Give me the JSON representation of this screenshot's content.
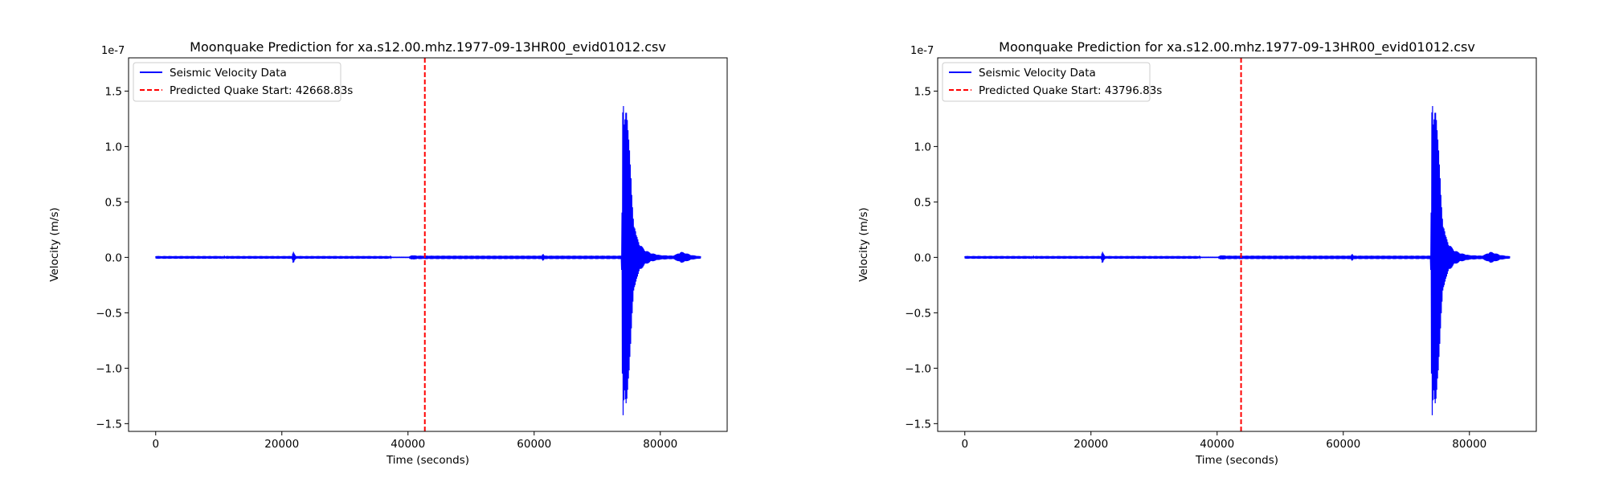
{
  "chart_data": [
    {
      "type": "line",
      "title": "Moonquake Prediction for xa.s12.00.mhz.1977-09-13HR00_evid01012.csv",
      "xlabel": "Time (seconds)",
      "ylabel": "Velocity (m/s)",
      "offset_label": "1e-7",
      "xlim": [
        -4300,
        90600
      ],
      "ylim": [
        -1.57,
        1.8
      ],
      "x_ticks": [
        0,
        20000,
        40000,
        60000,
        80000
      ],
      "y_ticks": [
        -1.5,
        -1.0,
        -0.5,
        0.0,
        0.5,
        1.0,
        1.5
      ],
      "y_tick_labels": [
        "−1.5",
        "−1.0",
        "−0.5",
        "0.0",
        "0.5",
        "1.0",
        "1.5"
      ],
      "grid": false,
      "legend": {
        "position": "top-left",
        "entries": [
          "Seismic Velocity Data",
          "Predicted Quake Start: 42668.83s"
        ]
      },
      "series": [
        {
          "name": "Seismic Velocity Data",
          "color": "#0000ff",
          "envelope": [
            [
              0,
              0.012
            ],
            [
              10300,
              0.012
            ],
            [
              10600,
              0.003
            ],
            [
              11300,
              0.012
            ],
            [
              21600,
              0.012
            ],
            [
              21800,
              0.06
            ],
            [
              22000,
              0.03
            ],
            [
              22200,
              0.012
            ],
            [
              37000,
              0.012
            ],
            [
              37400,
              0.002
            ],
            [
              40200,
              0.002
            ],
            [
              40500,
              0.02
            ],
            [
              41500,
              0.015
            ],
            [
              61200,
              0.015
            ],
            [
              61400,
              0.04
            ],
            [
              61600,
              0.015
            ],
            [
              73800,
              0.015
            ],
            [
              73900,
              0.2
            ],
            [
              74000,
              1.55
            ],
            [
              74100,
              1.65
            ],
            [
              74300,
              1.2
            ],
            [
              74600,
              1.35
            ],
            [
              74900,
              1.4
            ],
            [
              75200,
              0.9
            ],
            [
              75500,
              0.55
            ],
            [
              75800,
              0.35
            ],
            [
              76200,
              0.2
            ],
            [
              76800,
              0.12
            ],
            [
              77500,
              0.07
            ],
            [
              78500,
              0.04
            ],
            [
              80000,
              0.02
            ],
            [
              82000,
              0.015
            ],
            [
              82600,
              0.03
            ],
            [
              83300,
              0.05
            ],
            [
              84000,
              0.04
            ],
            [
              85000,
              0.02
            ],
            [
              86400,
              0.01
            ]
          ]
        },
        {
          "name": "Predicted Quake Start: 42668.83s",
          "color": "#ff0000",
          "style": "dashed",
          "vertical_x": 42668.83
        }
      ]
    },
    {
      "type": "line",
      "title": "Moonquake Prediction for xa.s12.00.mhz.1977-09-13HR00_evid01012.csv",
      "xlabel": "Time (seconds)",
      "ylabel": "Velocity (m/s)",
      "offset_label": "1e-7",
      "xlim": [
        -4300,
        90600
      ],
      "ylim": [
        -1.57,
        1.8
      ],
      "x_ticks": [
        0,
        20000,
        40000,
        60000,
        80000
      ],
      "y_ticks": [
        -1.5,
        -1.0,
        -0.5,
        0.0,
        0.5,
        1.0,
        1.5
      ],
      "y_tick_labels": [
        "−1.5",
        "−1.0",
        "−0.5",
        "0.0",
        "0.5",
        "1.0",
        "1.5"
      ],
      "grid": false,
      "legend": {
        "position": "top-left",
        "entries": [
          "Seismic Velocity Data",
          "Predicted Quake Start: 43796.83s"
        ]
      },
      "series": [
        {
          "name": "Seismic Velocity Data",
          "color": "#0000ff",
          "envelope": [
            [
              0,
              0.012
            ],
            [
              10300,
              0.012
            ],
            [
              10600,
              0.003
            ],
            [
              11300,
              0.012
            ],
            [
              21600,
              0.012
            ],
            [
              21800,
              0.06
            ],
            [
              22000,
              0.03
            ],
            [
              22200,
              0.012
            ],
            [
              37000,
              0.012
            ],
            [
              37400,
              0.002
            ],
            [
              40200,
              0.002
            ],
            [
              40500,
              0.02
            ],
            [
              41500,
              0.015
            ],
            [
              61200,
              0.015
            ],
            [
              61400,
              0.04
            ],
            [
              61600,
              0.015
            ],
            [
              73800,
              0.015
            ],
            [
              73900,
              0.2
            ],
            [
              74000,
              1.55
            ],
            [
              74100,
              1.65
            ],
            [
              74300,
              1.2
            ],
            [
              74600,
              1.35
            ],
            [
              74900,
              1.4
            ],
            [
              75200,
              0.9
            ],
            [
              75500,
              0.55
            ],
            [
              75800,
              0.35
            ],
            [
              76200,
              0.2
            ],
            [
              76800,
              0.12
            ],
            [
              77500,
              0.07
            ],
            [
              78500,
              0.04
            ],
            [
              80000,
              0.02
            ],
            [
              82000,
              0.015
            ],
            [
              82600,
              0.03
            ],
            [
              83300,
              0.05
            ],
            [
              84000,
              0.04
            ],
            [
              85000,
              0.02
            ],
            [
              86400,
              0.01
            ]
          ]
        },
        {
          "name": "Predicted Quake Start: 43796.83s",
          "color": "#ff0000",
          "style": "dashed",
          "vertical_x": 43796.83
        }
      ]
    }
  ]
}
